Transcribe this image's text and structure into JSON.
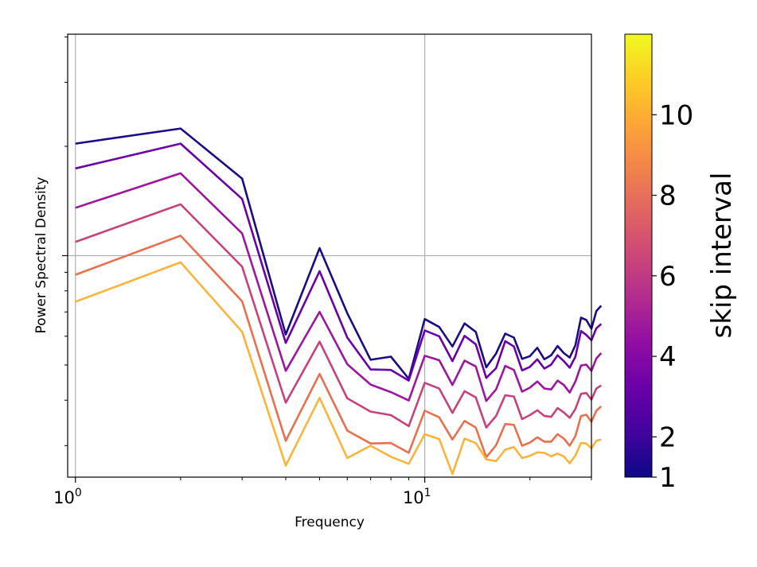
{
  "chart_data": {
    "type": "line",
    "title": "",
    "xlabel": "Frequency",
    "ylabel": "Power Spectral Density",
    "xscale": "log",
    "yscale": "log",
    "xlim": [
      0.95,
      30
    ],
    "x_ticks": [
      {
        "value": 1,
        "base": "10",
        "exp": "0"
      },
      {
        "value": 10,
        "base": "10",
        "exp": "1"
      }
    ],
    "grid": true,
    "x": [
      1,
      2,
      3,
      4,
      5,
      6,
      7,
      8,
      9,
      10,
      11,
      12,
      13,
      14,
      15,
      16,
      17,
      18,
      19,
      20,
      21,
      22,
      23,
      24,
      25,
      26,
      27,
      28,
      29,
      30,
      31,
      32
    ],
    "series": [
      {
        "name": "skip interval 1",
        "color": "#1a0c86",
        "values": [
          0.753,
          0.787,
          0.674,
          0.322,
          0.517,
          0.37,
          0.265,
          0.272,
          0.222,
          0.357,
          0.339,
          0.295,
          0.347,
          0.328,
          0.248,
          0.279,
          0.324,
          0.315,
          0.267,
          0.273,
          0.292,
          0.266,
          0.275,
          0.296,
          0.28,
          0.27,
          0.298,
          0.36,
          0.355,
          0.335,
          0.375,
          0.387
        ]
      },
      {
        "name": "skip interval 3",
        "color": "#6a00a8",
        "values": [
          0.697,
          0.753,
          0.628,
          0.303,
          0.465,
          0.315,
          0.243,
          0.242,
          0.218,
          0.331,
          0.318,
          0.262,
          0.319,
          0.3,
          0.224,
          0.246,
          0.307,
          0.295,
          0.241,
          0.249,
          0.266,
          0.245,
          0.254,
          0.275,
          0.262,
          0.247,
          0.272,
          0.33,
          0.321,
          0.309,
          0.336,
          0.346
        ]
      },
      {
        "name": "skip interval 5",
        "color": "#9c179e",
        "values": [
          0.608,
          0.686,
          0.55,
          0.24,
          0.373,
          0.255,
          0.209,
          0.192,
          0.173,
          0.274,
          0.264,
          0.208,
          0.263,
          0.25,
          0.172,
          0.198,
          0.251,
          0.242,
          0.193,
          0.202,
          0.216,
          0.2,
          0.198,
          0.218,
          0.208,
          0.191,
          0.216,
          0.252,
          0.254,
          0.24,
          0.268,
          0.28
        ]
      },
      {
        "name": "skip interval 7",
        "color": "#c7427c",
        "values": [
          0.531,
          0.616,
          0.475,
          0.168,
          0.306,
          0.178,
          0.148,
          0.14,
          0.115,
          0.213,
          0.2,
          0.145,
          0.194,
          0.18,
          0.112,
          0.138,
          0.185,
          0.182,
          0.131,
          0.14,
          0.151,
          0.138,
          0.136,
          0.156,
          0.146,
          0.134,
          0.154,
          0.188,
          0.19,
          0.175,
          0.2,
          0.207
        ]
      },
      {
        "name": "skip interval 9",
        "color": "#e8704e",
        "values": [
          0.457,
          0.545,
          0.397,
          0.082,
          0.233,
          0.105,
          0.076,
          0.077,
          0.055,
          0.15,
          0.135,
          0.085,
          0.127,
          0.112,
          0.045,
          0.072,
          0.12,
          0.118,
          0.071,
          0.078,
          0.09,
          0.08,
          0.08,
          0.097,
          0.087,
          0.071,
          0.093,
          0.138,
          0.141,
          0.125,
          0.15,
          0.16
        ]
      },
      {
        "name": "skip interval 11",
        "color": "#fbb43a",
        "values": [
          0.396,
          0.485,
          0.328,
          0.026,
          0.179,
          0.043,
          0.071,
          0.046,
          0.03,
          0.097,
          0.086,
          0.007,
          0.087,
          0.077,
          0.04,
          0.036,
          0.062,
          0.068,
          0.043,
          0.048,
          0.056,
          0.055,
          0.047,
          0.053,
          0.047,
          0.031,
          0.049,
          0.077,
          0.076,
          0.065,
          0.082,
          0.085
        ]
      }
    ],
    "colorbar": {
      "label": "skip interval",
      "colormap": "plasma",
      "min": 1,
      "max": 12,
      "ticks": [
        "1",
        "2",
        "4",
        "6",
        "8",
        "10"
      ],
      "tick_values": [
        1,
        2,
        4,
        6,
        8,
        10
      ]
    }
  }
}
